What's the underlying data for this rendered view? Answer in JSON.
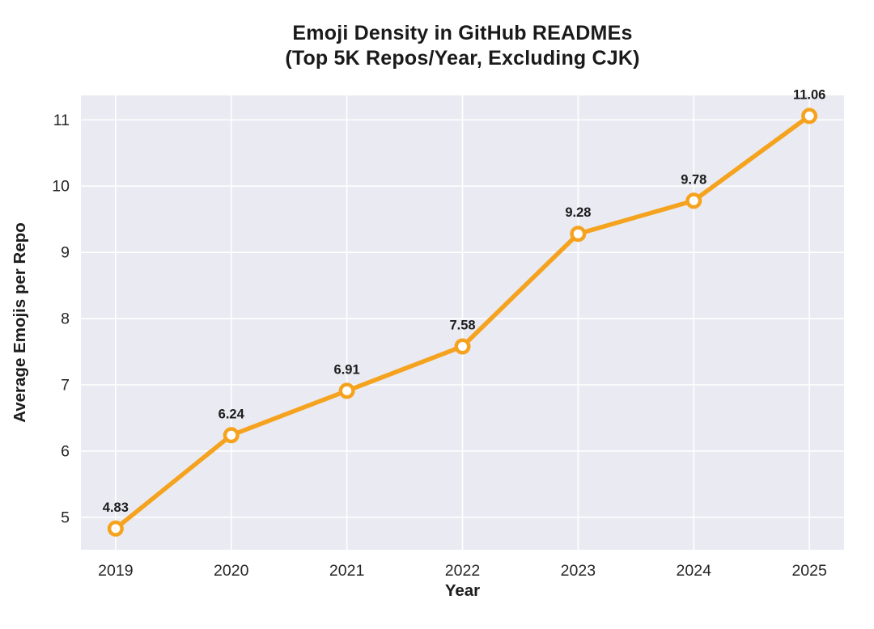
{
  "chart_data": {
    "type": "line",
    "title": "Emoji Density in GitHub READMEs (Top 5K Repos/Year, Excluding CJK)",
    "title_lines": [
      "Emoji Density in GitHub READMEs",
      "(Top 5K Repos/Year, Excluding CJK)"
    ],
    "xlabel": "Year",
    "ylabel": "Average Emojis per Repo",
    "categories": [
      2019,
      2020,
      2021,
      2022,
      2023,
      2024,
      2025
    ],
    "values": [
      4.83,
      6.24,
      6.91,
      7.58,
      9.28,
      9.78,
      11.06
    ],
    "point_labels": [
      "4.83",
      "6.24",
      "6.91",
      "7.58",
      "9.28",
      "9.78",
      "11.06"
    ],
    "xticks": [
      "2019",
      "2020",
      "2021",
      "2022",
      "2023",
      "2024",
      "2025"
    ],
    "yticks": [
      5,
      6,
      7,
      8,
      9,
      10,
      11
    ],
    "xlim": [
      2018.7,
      2025.3
    ],
    "ylim": [
      4.51,
      11.37
    ],
    "grid": true,
    "legend_position": "none",
    "style": {
      "figure_bg": "#FFFFFF",
      "plot_bg": "#EAEAF2",
      "grid_color": "#FFFFFF",
      "line_color": "#F5A31E",
      "marker_fill": "#FFFFFF",
      "marker_edge_color": "#F5A31E",
      "title_color": "#1A1A1A",
      "text_color": "#1C1C1C",
      "tick_color": "#262626"
    }
  }
}
